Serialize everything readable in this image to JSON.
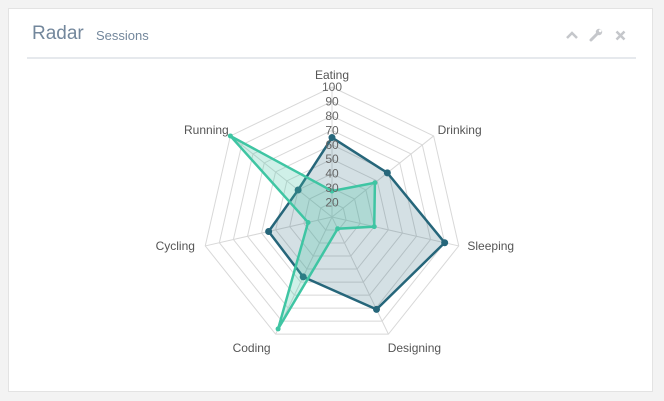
{
  "panel": {
    "title": "Radar",
    "subtitle": "Sessions",
    "tools": [
      {
        "icon": "chevron-up-icon"
      },
      {
        "icon": "wrench-icon"
      },
      {
        "icon": "close-icon"
      }
    ]
  },
  "chart_data": {
    "type": "radar",
    "title": "",
    "categories": [
      "Eating",
      "Drinking",
      "Sleeping",
      "Designing",
      "Coding",
      "Cycling",
      "Running"
    ],
    "ticks": [
      20,
      30,
      40,
      50,
      60,
      70,
      80,
      90,
      100
    ],
    "range": [
      10,
      100
    ],
    "grid": true,
    "series": [
      {
        "values": [
          65,
          59,
          90,
          81,
          56,
          55,
          40
        ],
        "color": "#26667a",
        "fill": "rgba(38,102,122,0.2)"
      },
      {
        "values": [
          28,
          48,
          40,
          19,
          96,
          27,
          100
        ],
        "color": "#3fc5a3",
        "fill": "rgba(63,197,163,0.25)"
      }
    ]
  }
}
